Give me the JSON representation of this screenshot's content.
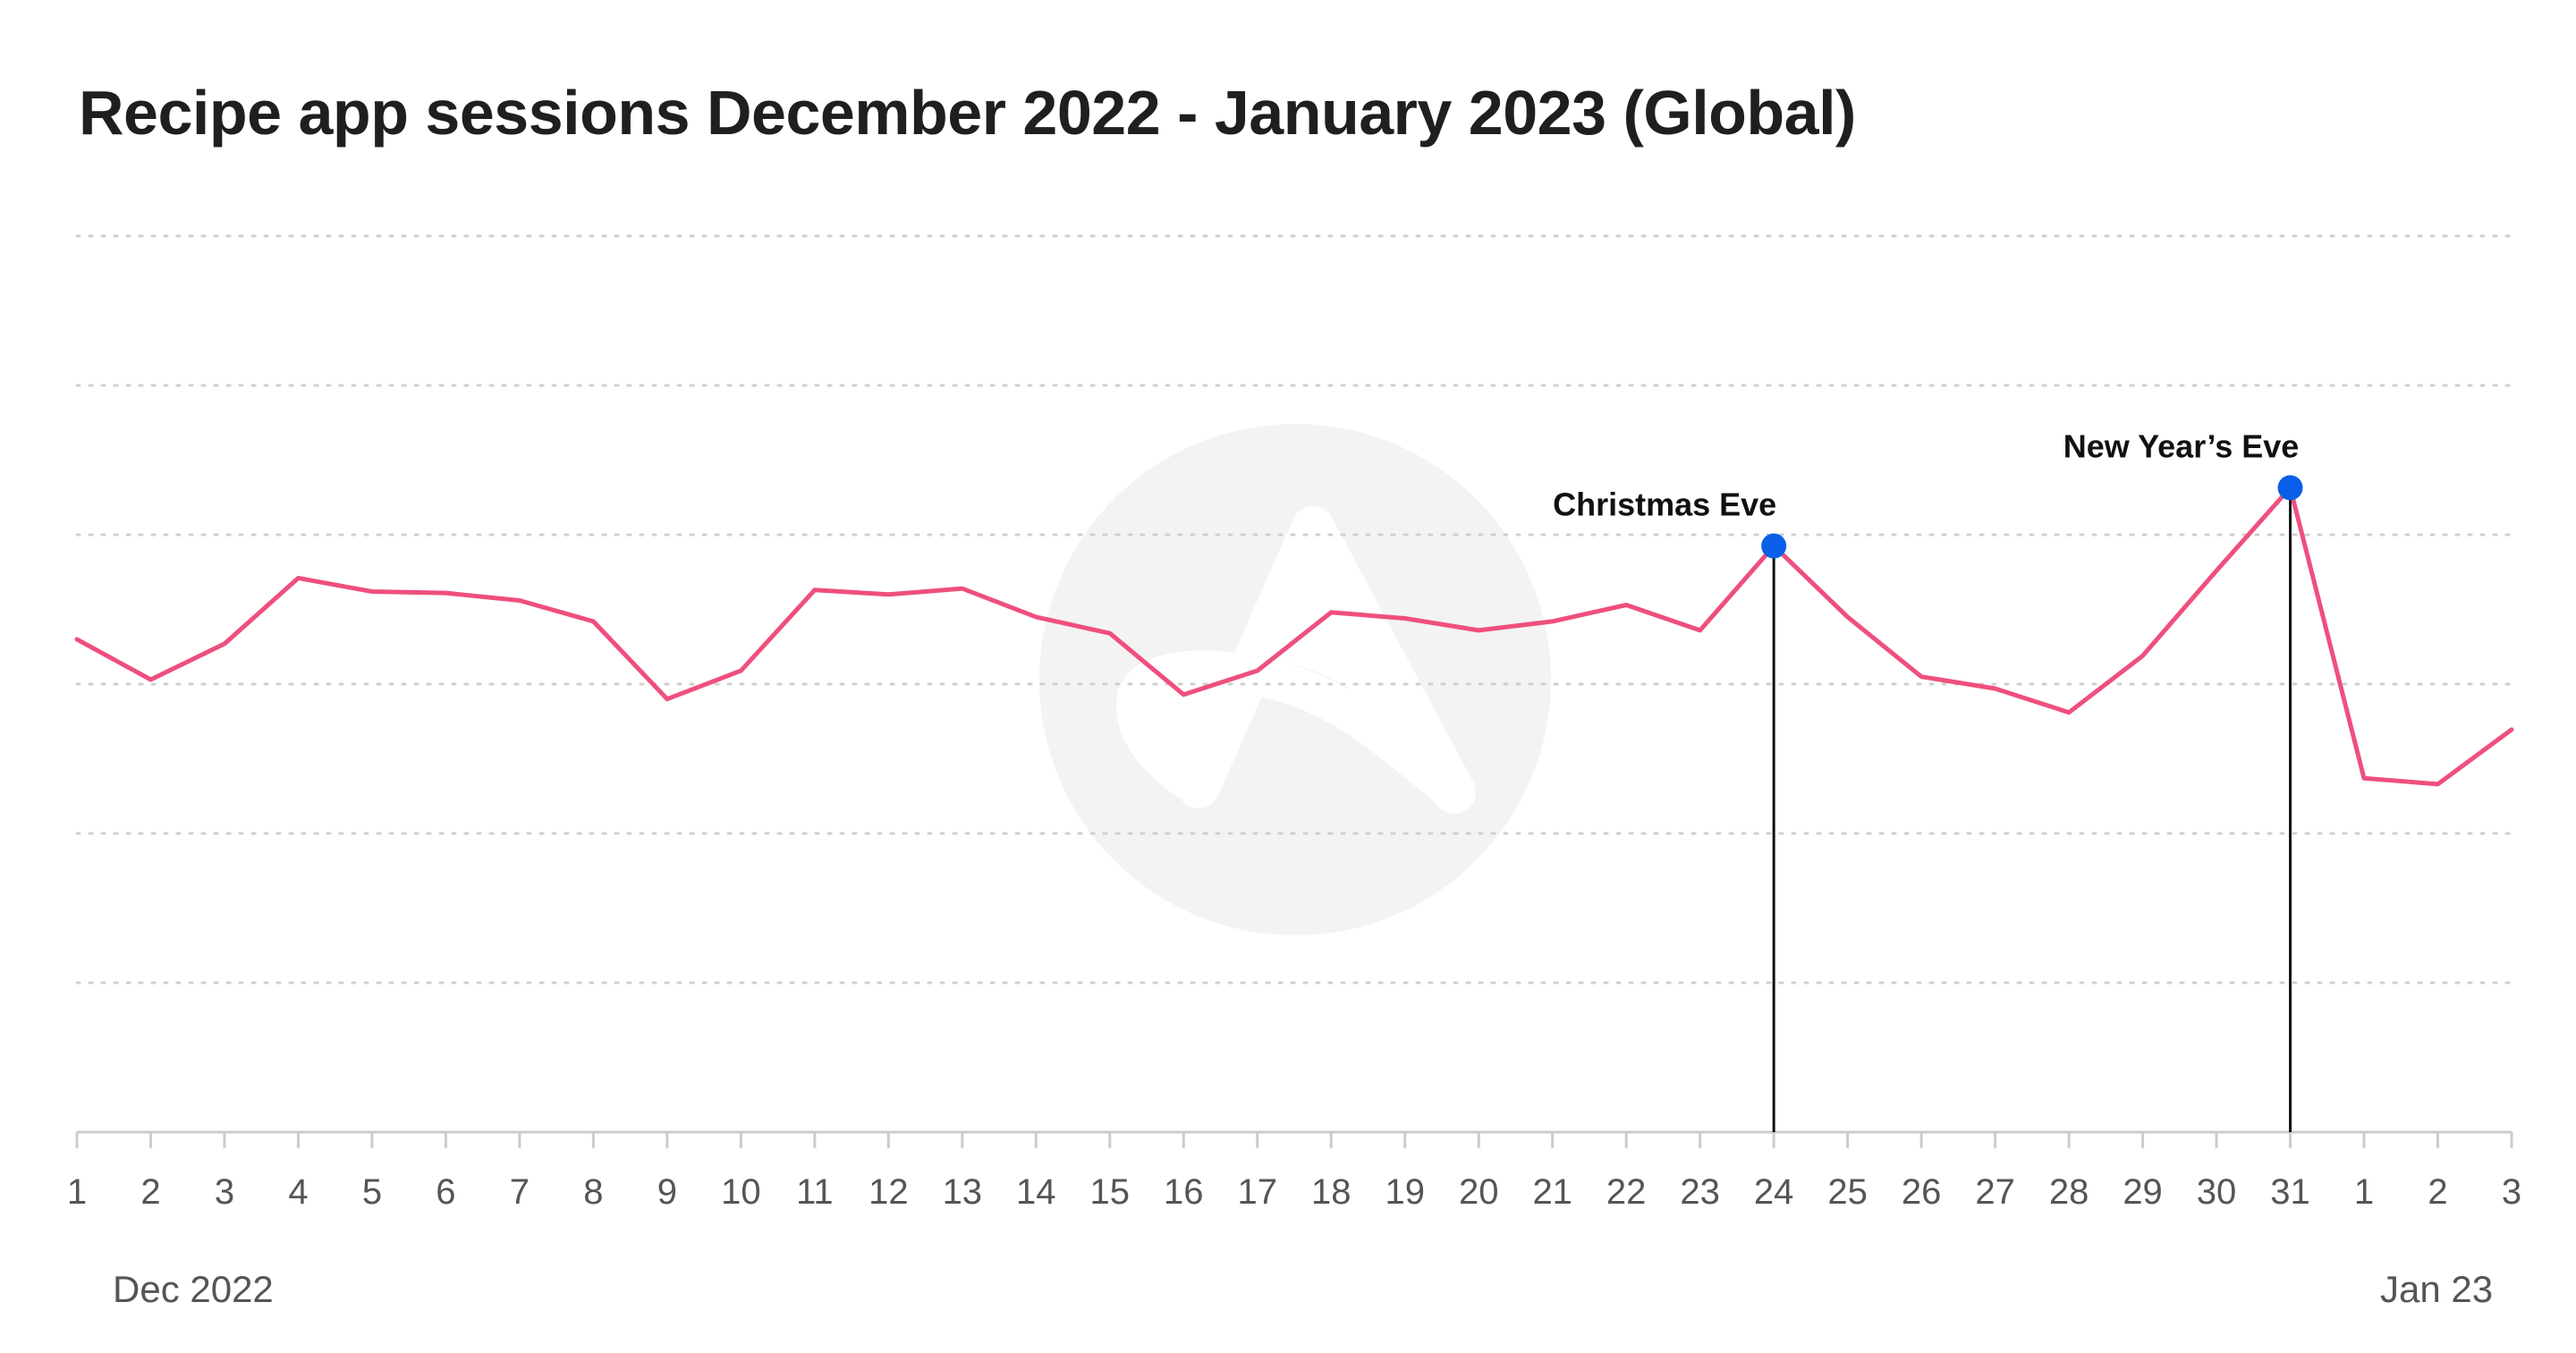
{
  "chart_data": {
    "type": "line",
    "title": "Recipe app sessions December 2022 - January 2023 (Global)",
    "categories": [
      "1",
      "2",
      "3",
      "4",
      "5",
      "6",
      "7",
      "8",
      "9",
      "10",
      "11",
      "12",
      "13",
      "14",
      "15",
      "16",
      "17",
      "18",
      "19",
      "20",
      "21",
      "22",
      "23",
      "24",
      "25",
      "26",
      "27",
      "28",
      "29",
      "30",
      "31",
      "1",
      "2",
      "3"
    ],
    "series": [
      {
        "values": [
          66.0,
          60.6,
          65.4,
          74.2,
          72.4,
          72.2,
          71.2,
          68.4,
          58.0,
          61.8,
          72.6,
          72.0,
          72.8,
          69.0,
          66.8,
          58.6,
          61.8,
          69.6,
          68.8,
          67.2,
          68.4,
          70.6,
          67.2,
          78.5,
          69.0,
          61.0,
          59.4,
          56.2,
          63.8,
          75.2,
          86.3,
          47.4,
          46.6,
          53.9
        ],
        "color": "#ef4f7d"
      }
    ],
    "ylim": [
      0,
      120
    ],
    "gridlines": [
      20,
      40,
      60,
      80,
      100,
      120
    ],
    "grid": "horizontal dotted",
    "y_tick_labels": "none",
    "x_period_labels": [
      {
        "text": "Dec 2022",
        "under_index": 0
      },
      {
        "text": "Jan 23",
        "under_index": 31
      }
    ],
    "annotations": [
      {
        "text": "Christmas Eve",
        "index": 23,
        "marker_color": "#0a5fe8"
      },
      {
        "text": "New Year’s Eve",
        "index": 30,
        "marker_color": "#0a5fe8"
      }
    ],
    "watermark": "app logo"
  }
}
